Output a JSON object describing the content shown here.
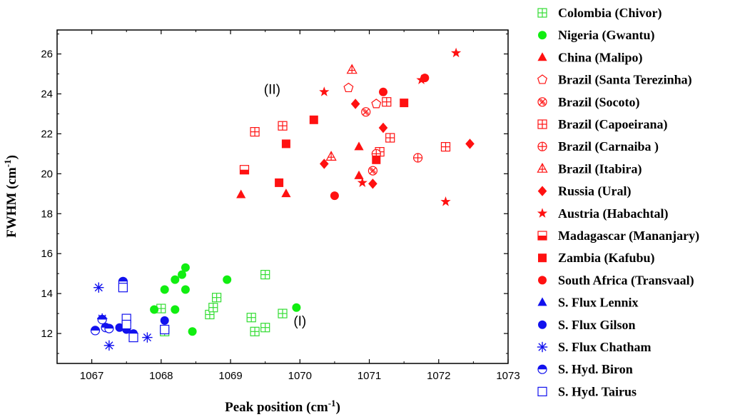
{
  "chart_data": {
    "type": "scatter",
    "xlabel": {
      "main": "Peak position (cm",
      "sup": "-1",
      "end": ")"
    },
    "ylabel": {
      "main": "FWHM (cm",
      "sup": "-1",
      "end": ")"
    },
    "xlim": [
      1066.5,
      1073
    ],
    "ylim": [
      10.5,
      27.2
    ],
    "xticks": [
      1067,
      1068,
      1069,
      1070,
      1071,
      1072,
      1073
    ],
    "yticks": [
      12,
      14,
      16,
      18,
      20,
      22,
      24,
      26
    ],
    "grid": false,
    "legend_position": "right-outside",
    "annotations": [
      {
        "text": "(II)",
        "x": 1069.6,
        "y": 24.0
      },
      {
        "text": "(I)",
        "x": 1070.0,
        "y": 12.4
      }
    ],
    "series": [
      {
        "name": "Colombia (Chivor)",
        "color": "#33dd33",
        "marker": "square-plus",
        "points": [
          [
            1068.0,
            13.25
          ],
          [
            1068.05,
            12.1
          ],
          [
            1068.7,
            12.95
          ],
          [
            1068.75,
            13.3
          ],
          [
            1068.8,
            13.8
          ],
          [
            1069.3,
            12.8
          ],
          [
            1069.35,
            12.1
          ],
          [
            1069.5,
            12.3
          ],
          [
            1069.5,
            14.95
          ],
          [
            1069.75,
            13.0
          ]
        ]
      },
      {
        "name": "Nigeria (Gwantu)",
        "color": "#11ee11",
        "marker": "circle",
        "points": [
          [
            1067.9,
            13.2
          ],
          [
            1068.05,
            14.2
          ],
          [
            1068.2,
            14.7
          ],
          [
            1068.2,
            13.2
          ],
          [
            1068.3,
            14.95
          ],
          [
            1068.35,
            15.3
          ],
          [
            1068.35,
            14.2
          ],
          [
            1068.45,
            12.1
          ],
          [
            1068.95,
            14.7
          ],
          [
            1069.95,
            13.3
          ]
        ]
      },
      {
        "name": "China (Malipo)",
        "color": "#ff1111",
        "marker": "triangle",
        "points": [
          [
            1069.15,
            18.95
          ],
          [
            1069.8,
            19.0
          ],
          [
            1070.85,
            19.9
          ],
          [
            1070.85,
            21.35
          ]
        ]
      },
      {
        "name": "Brazil (Santa Terezinha)",
        "color": "#ff1111",
        "marker": "pentagon-open",
        "points": [
          [
            1070.7,
            24.3
          ],
          [
            1071.1,
            23.5
          ]
        ]
      },
      {
        "name": "Brazil (Socoto)",
        "color": "#ff1111",
        "marker": "circle-x",
        "points": [
          [
            1070.95,
            23.1
          ],
          [
            1071.05,
            20.15
          ]
        ]
      },
      {
        "name": "Brazil (Capoeirana)",
        "color": "#ff1111",
        "marker": "square-plus",
        "points": [
          [
            1069.35,
            22.1
          ],
          [
            1069.75,
            22.4
          ],
          [
            1071.15,
            21.1
          ],
          [
            1071.25,
            23.6
          ],
          [
            1071.3,
            21.8
          ],
          [
            1072.1,
            21.35
          ]
        ]
      },
      {
        "name": "Brazil (Carnaiba )",
        "color": "#ff1111",
        "marker": "circle-plus",
        "points": [
          [
            1071.1,
            21.0
          ],
          [
            1071.7,
            20.8
          ]
        ]
      },
      {
        "name": "Brazil (Itabira)",
        "color": "#ff1111",
        "marker": "triangle-plus",
        "points": [
          [
            1070.45,
            20.85
          ],
          [
            1070.75,
            25.2
          ]
        ]
      },
      {
        "name": "Russia (Ural)",
        "color": "#ff1111",
        "marker": "diamond",
        "points": [
          [
            1070.35,
            20.5
          ],
          [
            1070.8,
            23.5
          ],
          [
            1071.05,
            19.5
          ],
          [
            1071.2,
            22.3
          ],
          [
            1072.45,
            21.5
          ]
        ]
      },
      {
        "name": "Austria (Habachtal)",
        "color": "#ff1111",
        "marker": "star",
        "points": [
          [
            1070.35,
            24.1
          ],
          [
            1070.9,
            19.55
          ],
          [
            1071.75,
            24.7
          ],
          [
            1072.1,
            18.6
          ],
          [
            1072.25,
            26.05
          ]
        ]
      },
      {
        "name": "Madagascar (Mananjary)",
        "color": "#ff1111",
        "marker": "square-half",
        "points": [
          [
            1069.2,
            20.2
          ]
        ]
      },
      {
        "name": "Zambia (Kafubu)",
        "color": "#ff1111",
        "marker": "square",
        "points": [
          [
            1069.7,
            19.55
          ],
          [
            1069.8,
            21.5
          ],
          [
            1070.2,
            22.7
          ],
          [
            1071.1,
            20.7
          ],
          [
            1071.5,
            23.55
          ]
        ]
      },
      {
        "name": "South Africa (Transvaal)",
        "color": "#ff1111",
        "marker": "circle",
        "points": [
          [
            1070.5,
            18.9
          ],
          [
            1071.2,
            24.1
          ],
          [
            1071.8,
            24.8
          ]
        ]
      },
      {
        "name": "S. Flux Lennix",
        "color": "#1111ee",
        "marker": "triangle",
        "points": []
      },
      {
        "name": "S. Flux Gilson",
        "color": "#1111ee",
        "marker": "circle",
        "points": [
          [
            1067.4,
            12.3
          ],
          [
            1067.5,
            12.2
          ],
          [
            1067.6,
            12.0
          ],
          [
            1068.05,
            12.65
          ]
        ]
      },
      {
        "name": "S. Flux Chatham",
        "color": "#1111ee",
        "marker": "asterisk",
        "points": [
          [
            1067.1,
            14.3
          ],
          [
            1067.15,
            12.75
          ],
          [
            1067.25,
            11.4
          ],
          [
            1067.8,
            11.8
          ]
        ]
      },
      {
        "name": "S. Hyd. Biron",
        "color": "#1111ee",
        "marker": "circle-half",
        "points": [
          [
            1067.05,
            12.15
          ],
          [
            1067.15,
            12.7
          ],
          [
            1067.2,
            12.3
          ],
          [
            1067.25,
            12.25
          ],
          [
            1067.45,
            14.6
          ]
        ]
      },
      {
        "name": "S. Hyd. Tairus",
        "color": "#1111ee",
        "marker": "square-open",
        "points": [
          [
            1067.45,
            14.3
          ],
          [
            1067.5,
            12.75
          ],
          [
            1067.5,
            12.45
          ],
          [
            1067.6,
            11.8
          ],
          [
            1068.05,
            12.2
          ]
        ]
      }
    ]
  }
}
